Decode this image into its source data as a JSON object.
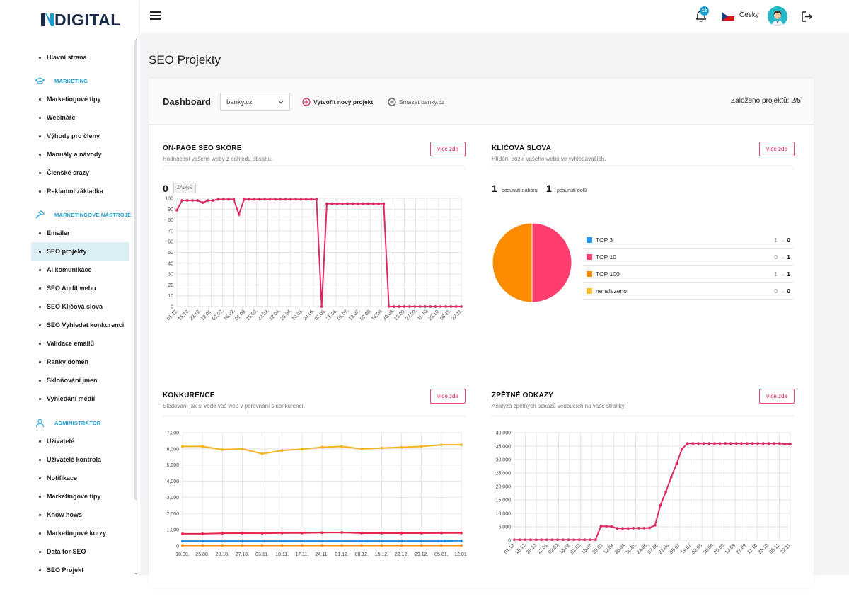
{
  "brand": {
    "name": "DIGITAL"
  },
  "sidebar": {
    "items": [
      {
        "kind": "item",
        "label": "Hlavní strana"
      },
      {
        "kind": "section",
        "label": "MARKETING",
        "icon": "graduation-cap-icon"
      },
      {
        "kind": "item",
        "label": "Marketingové tipy"
      },
      {
        "kind": "item",
        "label": "Webináře"
      },
      {
        "kind": "item",
        "label": "Výhody pro členy"
      },
      {
        "kind": "item",
        "label": "Manuály a návody"
      },
      {
        "kind": "item",
        "label": "Členské srazy"
      },
      {
        "kind": "item",
        "label": "Reklamní základka"
      },
      {
        "kind": "section",
        "label": "MARKETINGOVÉ NÁSTROJE",
        "icon": "hammer-icon"
      },
      {
        "kind": "item",
        "label": "Emailer"
      },
      {
        "kind": "item",
        "label": "SEO projekty",
        "active": true
      },
      {
        "kind": "item",
        "label": "AI komunikace"
      },
      {
        "kind": "item",
        "label": "SEO Audit webu"
      },
      {
        "kind": "item",
        "label": "SEO Klíčová slova"
      },
      {
        "kind": "item",
        "label": "SEO Vyhledat konkurenci"
      },
      {
        "kind": "item",
        "label": "Validace emailů"
      },
      {
        "kind": "item",
        "label": "Ranky domén"
      },
      {
        "kind": "item",
        "label": "Skloňování jmen"
      },
      {
        "kind": "item",
        "label": "Vyhledání médií"
      },
      {
        "kind": "section",
        "label": "ADMINISTRÁTOR",
        "icon": "users-icon"
      },
      {
        "kind": "item",
        "label": "Uživatelé"
      },
      {
        "kind": "item",
        "label": "Uživatelé kontrola"
      },
      {
        "kind": "item",
        "label": "Notifikace"
      },
      {
        "kind": "item",
        "label": "Marketingové tipy"
      },
      {
        "kind": "item",
        "label": "Know hows"
      },
      {
        "kind": "item",
        "label": "Marketingové kurzy"
      },
      {
        "kind": "item",
        "label": "Data for SEO"
      },
      {
        "kind": "item",
        "label": "SEO Projekt"
      }
    ]
  },
  "topbar": {
    "notifications_count": "13",
    "language": "Česky",
    "accent": "#1a9fd4"
  },
  "page": {
    "title": "SEO Projekty"
  },
  "dashboard": {
    "label": "Dashboard",
    "project_selected": "banky.cz",
    "create_label": "Vytvořit nový projekt",
    "delete_label": "Smazat banky.cz",
    "projects_count": "Založeno projektů: 2/5"
  },
  "panels": {
    "onpage": {
      "title": "ON-PAGE SEO SKÓRE",
      "subtitle": "Hodnocení vašeho weby z pohledu obsahu.",
      "button": "více zde",
      "score": "0",
      "badge": "ŽÁDNÉ"
    },
    "keywords": {
      "title": "KLÍČOVÁ SLOVA",
      "subtitle": "Hlídání pozic vašeho webu ve vyhledávačích.",
      "button": "více zde",
      "up_count": "1",
      "up_label": "posunutí nahoru",
      "down_count": "1",
      "down_label": "posunutí dolů",
      "legend": [
        {
          "label": "TOP 3",
          "color": "#2196f3",
          "from": "1",
          "to": "0"
        },
        {
          "label": "TOP 10",
          "color": "#ff3d6e",
          "from": "0",
          "to": "1"
        },
        {
          "label": "TOP 100",
          "color": "#fb8c00",
          "from": "1",
          "to": "1"
        },
        {
          "label": "nenalezeno",
          "color": "#fbc02d",
          "from": "0",
          "to": "0"
        }
      ],
      "arrow": "→"
    },
    "competition": {
      "title": "KONKURENCE",
      "subtitle": "Sledování jak si vede váš web v porovnání s konkurencí.",
      "button": "více zde"
    },
    "backlinks": {
      "title": "ZPĚTNÉ ODKAZY",
      "subtitle": "Analýza zpětných odkazů vedoucích na vaše stránky.",
      "button": "více zde"
    }
  },
  "chart_data": [
    {
      "type": "line",
      "x_tick_labels": [
        "01.12.",
        "15.12.",
        "29.12.",
        "12.01.",
        "02.02.",
        "16.02.",
        "01.03.",
        "15.03.",
        "29.03.",
        "12.04.",
        "26.04.",
        "10.05.",
        "24.05.",
        "07.06.",
        "21.06.",
        "05.07.",
        "19.07.",
        "02.08.",
        "16.08.",
        "30.08.",
        "13.09.",
        "27.09.",
        "11.10.",
        "25.10.",
        "08.11.",
        "22.11."
      ],
      "ylim": [
        0,
        100
      ],
      "y_ticks": [
        0,
        10,
        20,
        30,
        40,
        50,
        60,
        70,
        80,
        90,
        100
      ],
      "grid": true,
      "series": [
        {
          "color": "#dc2a62",
          "values": [
            89,
            98,
            98,
            98,
            98,
            96,
            98,
            98,
            99,
            99,
            99,
            99,
            85,
            99,
            99,
            99,
            99,
            99,
            99,
            99,
            99,
            99,
            99,
            99,
            99,
            99,
            99,
            99,
            0,
            95,
            95,
            95,
            95,
            95,
            95,
            95,
            95,
            95,
            95,
            95,
            95,
            0,
            0,
            0,
            0,
            0,
            0,
            0,
            0,
            0,
            0,
            0,
            0,
            0,
            0,
            0
          ]
        }
      ]
    },
    {
      "type": "pie",
      "slices": [
        {
          "label": "TOP 10",
          "value": 1,
          "color": "#ff3d6e"
        },
        {
          "label": "TOP 100",
          "value": 1,
          "color": "#fb8c00"
        }
      ]
    },
    {
      "type": "line",
      "x_tick_labels": [
        "18.08.",
        "25.08.",
        "20.10.",
        "27.10.",
        "03.11.",
        "10.11.",
        "17.11.",
        "24.11.",
        "01.12.",
        "08.12.",
        "15.12.",
        "22.12.",
        "29.12.",
        "05.01.",
        "12.01."
      ],
      "ylim": [
        0,
        7000
      ],
      "y_ticks": [
        0,
        1000,
        2000,
        3000,
        4000,
        5000,
        6000,
        7000
      ],
      "grid": true,
      "series": [
        {
          "color": "#f2b31b",
          "values": [
            6150,
            6150,
            5950,
            6000,
            5700,
            5900,
            5980,
            6100,
            6150,
            6000,
            6050,
            6100,
            6150,
            6250,
            6250
          ]
        },
        {
          "color": "#e5234d",
          "values": [
            750,
            750,
            780,
            790,
            780,
            800,
            800,
            820,
            830,
            790,
            790,
            790,
            790,
            800,
            800
          ]
        },
        {
          "color": "#1e88e5",
          "values": [
            300,
            300,
            300,
            300,
            300,
            300,
            300,
            300,
            300,
            300,
            300,
            300,
            300,
            300,
            320
          ]
        },
        {
          "color": "#fb8c00",
          "values": [
            30,
            30,
            30,
            30,
            30,
            30,
            30,
            30,
            30,
            30,
            30,
            30,
            30,
            30,
            30
          ]
        }
      ]
    },
    {
      "type": "line",
      "x_tick_labels": [
        "01.12.",
        "15.12.",
        "29.12.",
        "12.01.",
        "02.02.",
        "16.02.",
        "01.03.",
        "15.03.",
        "29.03.",
        "12.04.",
        "26.04.",
        "10.05.",
        "24.05.",
        "07.06.",
        "21.06.",
        "05.07.",
        "19.07.",
        "02.08.",
        "16.08.",
        "30.08.",
        "13.09.",
        "27.09.",
        "11.10.",
        "25.10.",
        "08.11.",
        "22.11."
      ],
      "ylim": [
        0,
        40000
      ],
      "y_ticks": [
        0,
        5000,
        10000,
        15000,
        20000,
        25000,
        30000,
        35000,
        40000
      ],
      "grid": true,
      "series": [
        {
          "color": "#dc2a62",
          "values": [
            200,
            200,
            200,
            200,
            200,
            200,
            200,
            200,
            200,
            200,
            200,
            200,
            200,
            200,
            200,
            200,
            5200,
            5200,
            5100,
            4400,
            4400,
            4400,
            4500,
            4500,
            4500,
            4600,
            5600,
            13000,
            18000,
            23500,
            28500,
            34000,
            36000,
            36000,
            36000,
            36000,
            36000,
            36000,
            36000,
            36000,
            36000,
            36000,
            36000,
            36000,
            36000,
            36000,
            36000,
            36000,
            36000,
            36000,
            35800,
            35800
          ]
        }
      ]
    }
  ]
}
